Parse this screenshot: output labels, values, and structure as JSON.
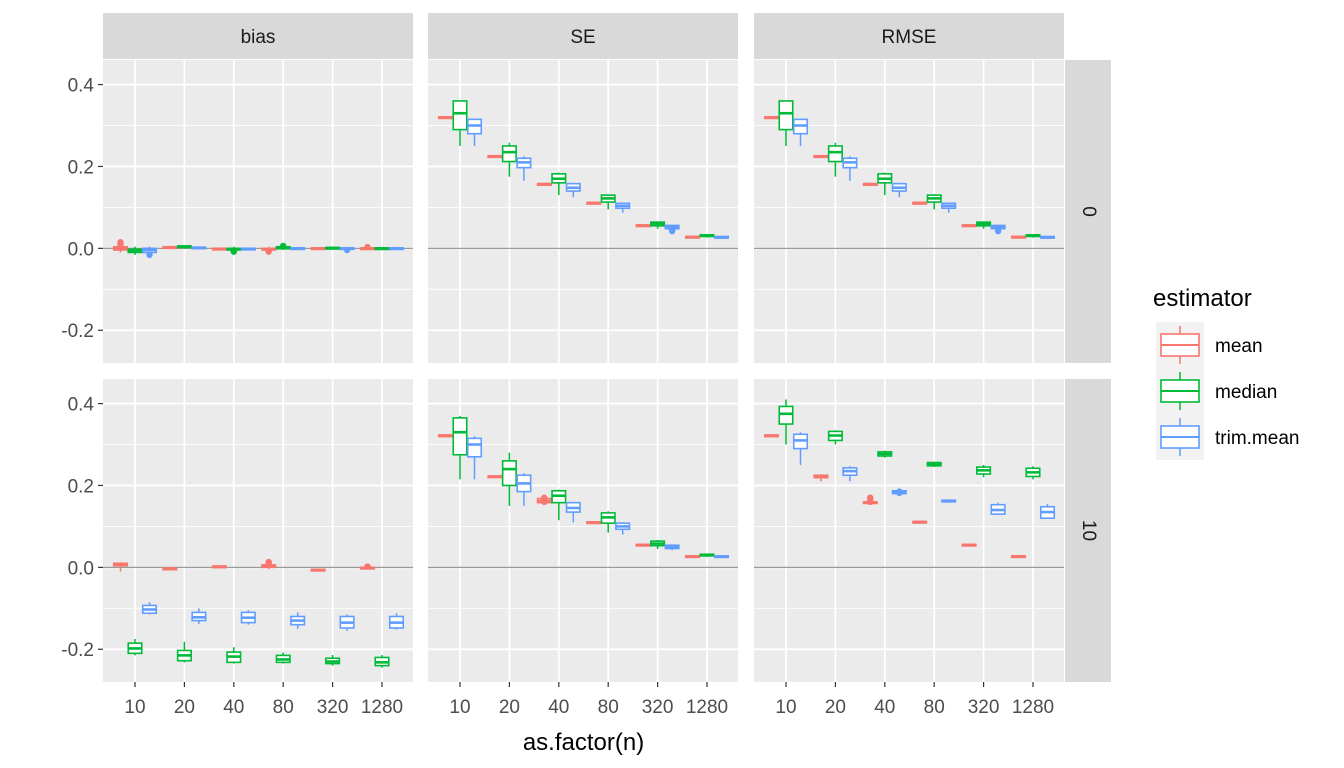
{
  "chart_data": {
    "type": "boxplot",
    "facet_columns": [
      "bias",
      "SE",
      "RMSE"
    ],
    "facet_rows": [
      "0",
      "10"
    ],
    "categories": [
      "10",
      "20",
      "40",
      "80",
      "320",
      "1280"
    ],
    "xlabel": "as.factor(n)",
    "ylabel": "",
    "ylim": [
      -0.28,
      0.46
    ],
    "yticks": [
      0.4,
      0.2,
      0.0,
      -0.2
    ],
    "ytick_labels": [
      "0.4",
      "0.2",
      "0.0",
      "-0.2"
    ],
    "reference_line": 0,
    "legend": {
      "title": "estimator",
      "position": "right"
    },
    "series": [
      {
        "name": "mean",
        "color": "#F8766D"
      },
      {
        "name": "median",
        "color": "#00BA38"
      },
      {
        "name": "trim.mean",
        "color": "#619CFF"
      }
    ],
    "panels": [
      {
        "row": "0",
        "col": "bias",
        "boxes": {
          "mean": [
            [
              -0.01,
              -0.004,
              0.0,
              0.004,
              0.008
            ],
            [
              -0.002,
              0.0,
              0.002,
              0.004,
              0.006
            ],
            [
              -0.004,
              -0.002,
              -0.001,
              0.0,
              0.002
            ],
            [
              -0.01,
              -0.004,
              -0.002,
              0.0,
              0.004
            ],
            [
              -0.001,
              0.0,
              0.0,
              0.001,
              0.002
            ],
            [
              -0.001,
              0.0,
              0.0,
              0.001,
              0.002
            ]
          ],
          "median": [
            [
              -0.016,
              -0.01,
              -0.006,
              -0.002,
              0.004
            ],
            [
              0.0,
              0.002,
              0.004,
              0.006,
              0.008
            ],
            [
              -0.01,
              -0.004,
              -0.002,
              0.0,
              0.004
            ],
            [
              -0.004,
              -0.001,
              0.001,
              0.004,
              0.008
            ],
            [
              -0.001,
              0.0,
              0.001,
              0.002,
              0.003
            ],
            [
              -0.001,
              0.0,
              0.0,
              0.001,
              0.002
            ]
          ],
          "trim.mean": [
            [
              -0.018,
              -0.01,
              -0.004,
              0.0,
              0.004
            ],
            [
              -0.002,
              0.0,
              0.001,
              0.003,
              0.005
            ],
            [
              -0.004,
              -0.002,
              -0.001,
              0.0,
              0.002
            ],
            [
              -0.003,
              -0.001,
              0.0,
              0.001,
              0.003
            ],
            [
              -0.003,
              -0.001,
              0.0,
              0.001,
              0.002
            ],
            [
              -0.001,
              0.0,
              0.0,
              0.001,
              0.002
            ]
          ]
        },
        "outliers": {
          "mean": [
            [
              0.015,
              0.01
            ],
            [],
            [],
            [
              -0.008
            ],
            [],
            [
              0.003
            ]
          ],
          "median": [
            [],
            [],
            [
              -0.008
            ],
            [
              0.006
            ],
            [],
            []
          ],
          "trim.mean": [
            [
              -0.016
            ],
            [],
            [],
            [],
            [
              -0.004
            ],
            []
          ]
        }
      },
      {
        "row": "0",
        "col": "SE",
        "boxes": {
          "mean": [
            [
              0.318,
              0.319,
              0.32,
              0.321,
              0.322
            ],
            [
              0.223,
              0.224,
              0.225,
              0.226,
              0.227
            ],
            [
              0.155,
              0.156,
              0.157,
              0.158,
              0.159
            ],
            [
              0.109,
              0.11,
              0.111,
              0.112,
              0.113
            ],
            [
              0.054,
              0.055,
              0.056,
              0.057,
              0.058
            ],
            [
              0.026,
              0.027,
              0.028,
              0.029,
              0.03
            ]
          ],
          "median": [
            [
              0.25,
              0.29,
              0.33,
              0.36,
              0.36
            ],
            [
              0.175,
              0.212,
              0.235,
              0.25,
              0.258
            ],
            [
              0.13,
              0.16,
              0.17,
              0.182,
              0.185
            ],
            [
              0.095,
              0.113,
              0.122,
              0.13,
              0.132
            ],
            [
              0.048,
              0.055,
              0.06,
              0.064,
              0.066
            ],
            [
              0.026,
              0.029,
              0.031,
              0.033,
              0.034
            ]
          ],
          "trim.mean": [
            [
              0.25,
              0.28,
              0.3,
              0.315,
              0.315
            ],
            [
              0.165,
              0.197,
              0.21,
              0.22,
              0.225
            ],
            [
              0.125,
              0.14,
              0.148,
              0.158,
              0.16
            ],
            [
              0.087,
              0.098,
              0.104,
              0.11,
              0.112
            ],
            [
              0.042,
              0.048,
              0.052,
              0.056,
              0.057
            ],
            [
              0.023,
              0.025,
              0.027,
              0.029,
              0.03
            ]
          ]
        },
        "outliers": {
          "mean": [
            [],
            [],
            [],
            [],
            [],
            []
          ],
          "median": [
            [],
            [],
            [],
            [],
            [],
            []
          ],
          "trim.mean": [
            [],
            [],
            [],
            [],
            [
              0.044,
              0.042
            ],
            []
          ]
        }
      },
      {
        "row": "0",
        "col": "RMSE",
        "boxes": {
          "mean": [
            [
              0.318,
              0.319,
              0.32,
              0.321,
              0.322
            ],
            [
              0.223,
              0.224,
              0.225,
              0.226,
              0.227
            ],
            [
              0.155,
              0.156,
              0.157,
              0.158,
              0.159
            ],
            [
              0.109,
              0.11,
              0.111,
              0.112,
              0.113
            ],
            [
              0.054,
              0.055,
              0.056,
              0.057,
              0.058
            ],
            [
              0.026,
              0.027,
              0.028,
              0.029,
              0.03
            ]
          ],
          "median": [
            [
              0.25,
              0.29,
              0.33,
              0.36,
              0.36
            ],
            [
              0.175,
              0.212,
              0.235,
              0.25,
              0.258
            ],
            [
              0.13,
              0.16,
              0.17,
              0.182,
              0.185
            ],
            [
              0.095,
              0.113,
              0.122,
              0.13,
              0.132
            ],
            [
              0.048,
              0.055,
              0.06,
              0.064,
              0.066
            ],
            [
              0.026,
              0.029,
              0.031,
              0.033,
              0.034
            ]
          ],
          "trim.mean": [
            [
              0.25,
              0.28,
              0.3,
              0.315,
              0.315
            ],
            [
              0.165,
              0.197,
              0.21,
              0.22,
              0.225
            ],
            [
              0.125,
              0.14,
              0.148,
              0.158,
              0.16
            ],
            [
              0.087,
              0.098,
              0.104,
              0.11,
              0.112
            ],
            [
              0.042,
              0.048,
              0.052,
              0.056,
              0.057
            ],
            [
              0.023,
              0.025,
              0.027,
              0.029,
              0.03
            ]
          ]
        },
        "outliers": {
          "mean": [
            [],
            [],
            [],
            [],
            [],
            []
          ],
          "median": [
            [],
            [],
            [],
            [],
            [],
            []
          ],
          "trim.mean": [
            [],
            [],
            [],
            [],
            [
              0.044,
              0.042
            ],
            []
          ]
        }
      },
      {
        "row": "10",
        "col": "bias",
        "boxes": {
          "mean": [
            [
              -0.01,
              0.004,
              0.007,
              0.01,
              0.012
            ],
            [
              -0.006,
              -0.004,
              -0.003,
              -0.002,
              0.0
            ],
            [
              0.0,
              0.001,
              0.002,
              0.003,
              0.004
            ],
            [
              -0.004,
              0.0,
              0.003,
              0.006,
              0.01
            ],
            [
              -0.008,
              -0.007,
              -0.006,
              -0.005,
              -0.004
            ],
            [
              -0.004,
              -0.002,
              -0.001,
              0.0,
              0.002
            ]
          ],
          "median": [
            [
              -0.215,
              -0.21,
              -0.198,
              -0.185,
              -0.175
            ],
            [
              -0.232,
              -0.228,
              -0.215,
              -0.203,
              -0.182
            ],
            [
              -0.235,
              -0.232,
              -0.218,
              -0.207,
              -0.195
            ],
            [
              -0.235,
              -0.232,
              -0.225,
              -0.215,
              -0.208
            ],
            [
              -0.24,
              -0.235,
              -0.23,
              -0.222,
              -0.214
            ],
            [
              -0.245,
              -0.24,
              -0.232,
              -0.22,
              -0.214
            ]
          ],
          "trim.mean": [
            [
              -0.115,
              -0.112,
              -0.103,
              -0.093,
              -0.085
            ],
            [
              -0.138,
              -0.13,
              -0.122,
              -0.11,
              -0.1
            ],
            [
              -0.14,
              -0.135,
              -0.123,
              -0.11,
              -0.105
            ],
            [
              -0.15,
              -0.14,
              -0.13,
              -0.12,
              -0.11
            ],
            [
              -0.155,
              -0.148,
              -0.135,
              -0.12,
              -0.115
            ],
            [
              -0.152,
              -0.148,
              -0.135,
              -0.12,
              -0.112
            ]
          ]
        },
        "outliers": {
          "mean": [
            [],
            [],
            [],
            [
              0.01,
              0.013
            ],
            [],
            [
              0.002
            ]
          ],
          "median": [
            [],
            [],
            [],
            [],
            [],
            []
          ],
          "trim.mean": [
            [],
            [],
            [],
            [],
            [],
            []
          ]
        }
      },
      {
        "row": "10",
        "col": "SE",
        "boxes": {
          "mean": [
            [
              0.319,
              0.321,
              0.322,
              0.323,
              0.325
            ],
            [
              0.219,
              0.221,
              0.222,
              0.223,
              0.225
            ],
            [
              0.155,
              0.158,
              0.162,
              0.168,
              0.172
            ],
            [
              0.108,
              0.109,
              0.11,
              0.111,
              0.112
            ],
            [
              0.053,
              0.054,
              0.055,
              0.056,
              0.057
            ],
            [
              0.025,
              0.026,
              0.027,
              0.028,
              0.029
            ]
          ],
          "median": [
            [
              0.215,
              0.275,
              0.33,
              0.365,
              0.37
            ],
            [
              0.15,
              0.2,
              0.24,
              0.26,
              0.28
            ],
            [
              0.115,
              0.158,
              0.175,
              0.187,
              0.19
            ],
            [
              0.085,
              0.108,
              0.122,
              0.133,
              0.137
            ],
            [
              0.045,
              0.053,
              0.058,
              0.064,
              0.067
            ],
            [
              0.025,
              0.028,
              0.03,
              0.032,
              0.034
            ]
          ],
          "trim.mean": [
            [
              0.215,
              0.27,
              0.3,
              0.315,
              0.32
            ],
            [
              0.15,
              0.185,
              0.205,
              0.225,
              0.23
            ],
            [
              0.11,
              0.135,
              0.145,
              0.158,
              0.16
            ],
            [
              0.08,
              0.093,
              0.1,
              0.108,
              0.11
            ],
            [
              0.042,
              0.046,
              0.05,
              0.054,
              0.056
            ],
            [
              0.023,
              0.025,
              0.026,
              0.028,
              0.029
            ]
          ]
        },
        "outliers": {
          "mean": [
            [],
            [],
            [
              0.17,
              0.165,
              0.16
            ],
            [],
            [],
            []
          ],
          "median": [
            [],
            [],
            [],
            [],
            [],
            []
          ],
          "trim.mean": [
            [],
            [],
            [],
            [],
            [],
            []
          ]
        }
      },
      {
        "row": "10",
        "col": "RMSE",
        "boxes": {
          "mean": [
            [
              0.319,
              0.321,
              0.322,
              0.323,
              0.325
            ],
            [
              0.21,
              0.219,
              0.222,
              0.225,
              0.226
            ],
            [
              0.153,
              0.156,
              0.158,
              0.16,
              0.162
            ],
            [
              0.109,
              0.11,
              0.111,
              0.112,
              0.113
            ],
            [
              0.053,
              0.054,
              0.055,
              0.056,
              0.057
            ],
            [
              0.025,
              0.026,
              0.027,
              0.028,
              0.029
            ]
          ],
          "median": [
            [
              0.3,
              0.35,
              0.375,
              0.393,
              0.41
            ],
            [
              0.3,
              0.31,
              0.322,
              0.332,
              0.335
            ],
            [
              0.268,
              0.272,
              0.277,
              0.282,
              0.285
            ],
            [
              0.245,
              0.248,
              0.252,
              0.256,
              0.258
            ],
            [
              0.22,
              0.228,
              0.237,
              0.245,
              0.25
            ],
            [
              0.215,
              0.222,
              0.232,
              0.242,
              0.247
            ]
          ],
          "trim.mean": [
            [
              0.25,
              0.29,
              0.31,
              0.325,
              0.33
            ],
            [
              0.21,
              0.225,
              0.235,
              0.243,
              0.247
            ],
            [
              0.178,
              0.18,
              0.183,
              0.187,
              0.19
            ],
            [
              0.158,
              0.16,
              0.162,
              0.164,
              0.166
            ],
            [
              0.13,
              0.13,
              0.14,
              0.153,
              0.158
            ],
            [
              0.12,
              0.12,
              0.135,
              0.148,
              0.155
            ]
          ]
        },
        "outliers": {
          "mean": [
            [],
            [],
            [
              0.17,
              0.165,
              0.16
            ],
            [],
            [],
            []
          ],
          "median": [
            [],
            [],
            [],
            [],
            [],
            []
          ],
          "trim.mean": [
            [],
            [],
            [
              0.185,
              0.182
            ],
            [],
            [],
            []
          ]
        }
      }
    ]
  }
}
